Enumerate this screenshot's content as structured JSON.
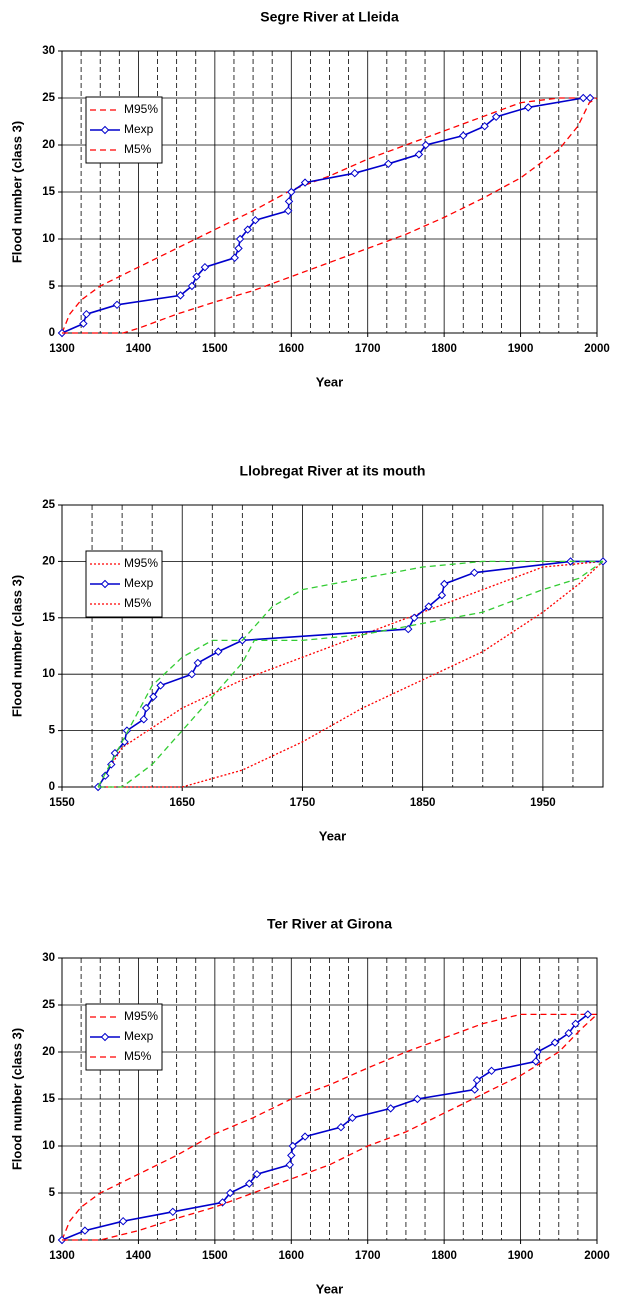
{
  "chart_data": [
    {
      "type": "line",
      "title": "Segre River at Lleida",
      "x_label": "Year",
      "y_label": "Flood number (class 3)",
      "xlim": [
        1300,
        2000
      ],
      "xticks": [
        1300,
        1400,
        1500,
        1600,
        1700,
        1800,
        1900,
        2000
      ],
      "ylim": [
        0,
        30
      ],
      "yticks": [
        0,
        5,
        10,
        15,
        20,
        25,
        30
      ],
      "grid": true,
      "minor_x_grid_step": 25,
      "legend": "upper left",
      "series": [
        {
          "name": "M95%",
          "color": "#ff0000",
          "dash": "dashed",
          "marker": "none",
          "x": [
            1300,
            1310,
            1325,
            1350,
            1400,
            1450,
            1500,
            1550,
            1600,
            1650,
            1700,
            1750,
            1800,
            1850,
            1900,
            1950,
            2000
          ],
          "values": [
            0,
            2,
            3.5,
            5,
            7,
            9,
            11,
            13,
            15.2,
            16.7,
            18.5,
            20,
            21.5,
            23,
            24.5,
            25,
            25
          ]
        },
        {
          "name": "Mexp",
          "color": "#0000cc",
          "dash": "solid",
          "marker": "diamond",
          "x": [
            1300,
            1328,
            1332,
            1372,
            1455,
            1470,
            1476,
            1487,
            1526,
            1531,
            1533,
            1543,
            1553,
            1596,
            1597,
            1600,
            1618,
            1683,
            1727,
            1767,
            1776,
            1825,
            1853,
            1868,
            1910,
            1982,
            1991
          ],
          "values": [
            0,
            1,
            2,
            3,
            4,
            5,
            6,
            7,
            8,
            9,
            10,
            11,
            12,
            13,
            14,
            15,
            16,
            17,
            18,
            19,
            20,
            21,
            22,
            23,
            24,
            25,
            25
          ]
        },
        {
          "name": "M5%",
          "color": "#ff0000",
          "dash": "dashed",
          "marker": "none",
          "x": [
            1300,
            1350,
            1380,
            1400,
            1450,
            1500,
            1550,
            1600,
            1650,
            1700,
            1750,
            1800,
            1850,
            1900,
            1950,
            1975,
            1990,
            2000
          ],
          "values": [
            0,
            0,
            0,
            0.5,
            2,
            3.3,
            4.5,
            6,
            7.5,
            9,
            10.5,
            12.3,
            14.3,
            16.5,
            19.5,
            22,
            24.5,
            25
          ]
        }
      ]
    },
    {
      "type": "line",
      "title": "Llobregat River at its mouth",
      "x_label": "Year",
      "y_label": "Flood number (class 3)",
      "xlim": [
        1550,
        2000
      ],
      "xticks": [
        1550,
        1650,
        1750,
        1850,
        1950
      ],
      "ylim": [
        0,
        25
      ],
      "yticks": [
        0,
        5,
        10,
        15,
        20,
        25
      ],
      "grid": true,
      "minor_x_grid_step": 25,
      "legend": "upper left",
      "series": [
        {
          "name": "M95%",
          "color": "#ff0000",
          "dash": "dotted",
          "marker": "none",
          "x": [
            1580,
            1600,
            1650,
            1700,
            1750,
            1800,
            1850,
            1900,
            1950,
            2000
          ],
          "values": [
            0,
            3.5,
            7,
            9.5,
            11.5,
            13.5,
            15.5,
            17.5,
            19.5,
            20
          ]
        },
        {
          "name": "Mexp",
          "color": "#0000cc",
          "dash": "solid",
          "marker": "diamond",
          "x": [
            1580,
            1586,
            1591,
            1594,
            1602,
            1604,
            1618,
            1620,
            1626,
            1632,
            1658,
            1663,
            1680,
            1700,
            1838,
            1843,
            1855,
            1866,
            1868,
            1893,
            1973,
            2000
          ],
          "values": [
            0,
            1,
            2,
            3,
            4,
            5,
            6,
            7,
            8,
            9,
            10,
            11,
            12,
            13,
            14,
            15,
            16,
            17,
            18,
            19,
            20,
            20
          ]
        },
        {
          "name": "M5%",
          "color": "#ff0000",
          "dash": "dotted",
          "marker": "none",
          "x": [
            1580,
            1650,
            1700,
            1750,
            1800,
            1850,
            1900,
            1950,
            1980,
            2000
          ],
          "values": [
            0,
            0,
            1.5,
            4,
            7,
            9.5,
            12,
            15.5,
            18,
            20
          ]
        },
        {
          "color": "#33cc33",
          "dash": "dashed",
          "marker": "none",
          "x": [
            1580,
            1600,
            1625,
            1650,
            1675,
            1700,
            1725,
            1750,
            1800,
            1850,
            1900,
            2000
          ],
          "values": [
            0,
            4,
            9,
            11.5,
            13,
            13,
            16,
            17.5,
            18.5,
            19.5,
            20,
            20
          ]
        },
        {
          "color": "#33cc33",
          "dash": "dashed",
          "marker": "none",
          "x": [
            1580,
            1600,
            1625,
            1650,
            1675,
            1700,
            1710,
            1750,
            1800,
            1850,
            1900,
            1950,
            1980,
            2000
          ],
          "values": [
            0,
            0,
            2,
            5,
            8,
            11,
            13,
            13,
            13.5,
            14.5,
            15.5,
            17.5,
            18.5,
            20
          ]
        }
      ]
    },
    {
      "type": "line",
      "title": "Ter River at Girona",
      "x_label": "Year",
      "y_label": "Flood number (class 3)",
      "xlim": [
        1300,
        2000
      ],
      "xticks": [
        1300,
        1400,
        1500,
        1600,
        1700,
        1800,
        1900,
        2000
      ],
      "ylim": [
        0,
        30
      ],
      "yticks": [
        0,
        5,
        10,
        15,
        20,
        25,
        30
      ],
      "grid": true,
      "minor_x_grid_step": 25,
      "legend": "upper left",
      "series": [
        {
          "name": "M95%",
          "color": "#ff0000",
          "dash": "dashed",
          "marker": "none",
          "x": [
            1300,
            1310,
            1325,
            1350,
            1400,
            1450,
            1500,
            1550,
            1600,
            1650,
            1700,
            1750,
            1800,
            1850,
            1900,
            2000
          ],
          "values": [
            0,
            2,
            3.5,
            5,
            7,
            9,
            11.3,
            13,
            15,
            16.5,
            18.3,
            20,
            21.5,
            23,
            24,
            24
          ]
        },
        {
          "name": "Mexp",
          "color": "#0000cc",
          "dash": "solid",
          "marker": "diamond",
          "x": [
            1300,
            1330,
            1380,
            1445,
            1510,
            1520,
            1545,
            1555,
            1598,
            1600,
            1602,
            1618,
            1665,
            1680,
            1730,
            1765,
            1840,
            1843,
            1862,
            1920,
            1922,
            1945,
            1963,
            1972,
            1988
          ],
          "values": [
            0,
            1,
            2,
            3,
            4,
            5,
            6,
            7,
            8,
            9,
            10,
            11,
            12,
            13,
            14,
            15,
            16,
            17,
            18,
            19,
            20,
            21,
            22,
            23,
            24
          ]
        },
        {
          "name": "M5%",
          "color": "#ff0000",
          "dash": "dashed",
          "marker": "none",
          "x": [
            1300,
            1350,
            1400,
            1450,
            1500,
            1550,
            1600,
            1650,
            1700,
            1750,
            1800,
            1850,
            1900,
            1950,
            1980,
            2000
          ],
          "values": [
            0,
            0,
            1,
            2.3,
            3.5,
            5,
            6.5,
            8,
            10,
            11.5,
            13.5,
            15.5,
            17.5,
            20,
            22.5,
            24
          ]
        }
      ]
    }
  ]
}
